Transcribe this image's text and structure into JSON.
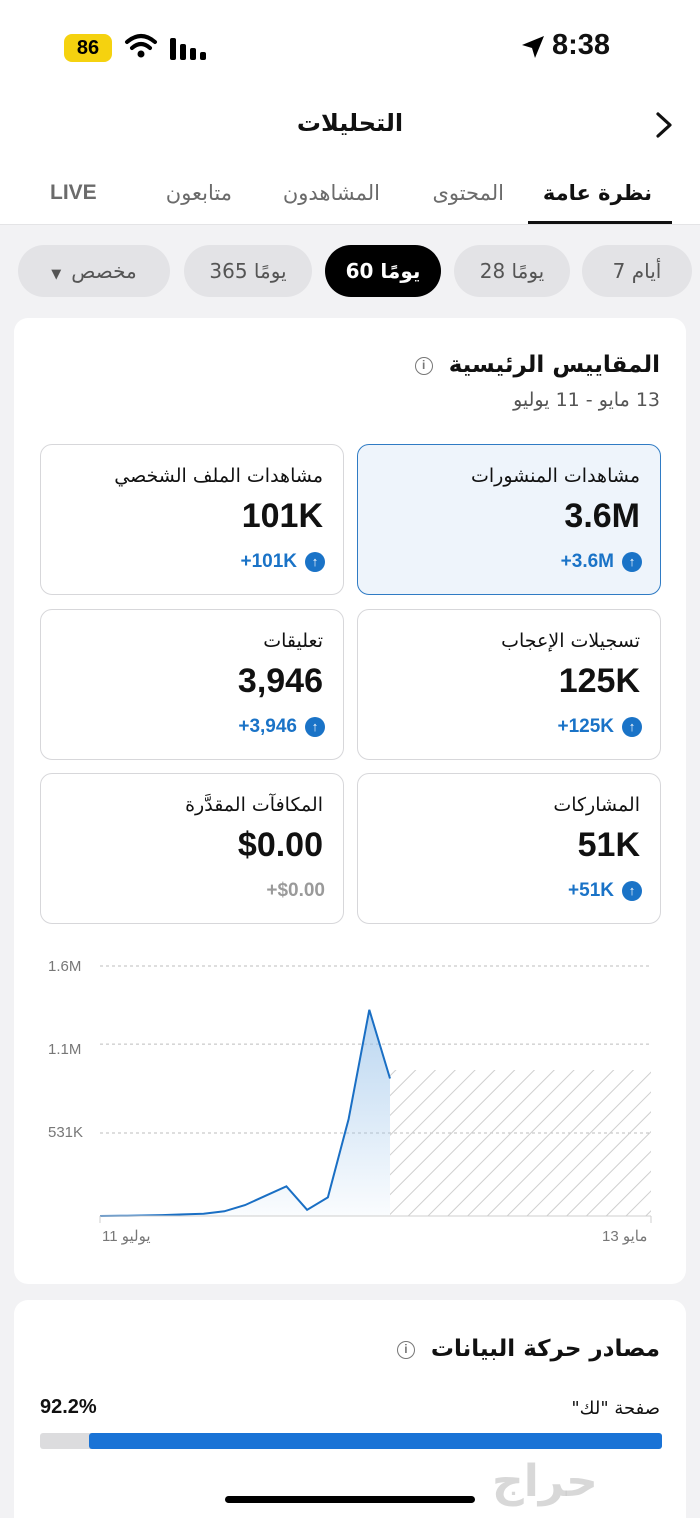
{
  "status_bar": {
    "battery": "86",
    "time": "8:38"
  },
  "header": {
    "title": "التحليلات",
    "tabs": [
      "نظرة عامة",
      "المحتوى",
      "المشاهدون",
      "متابعون",
      "LIVE"
    ]
  },
  "filters": {
    "chips": [
      "7 أيام",
      "28 يومًا",
      "60 يومًا",
      "365 يومًا",
      "مخصص"
    ],
    "selected": "60 يومًا"
  },
  "key_metrics": {
    "title": "المقاييس الرئيسية",
    "date_range": "13 مايو - 11 يوليو",
    "metrics": [
      {
        "label": "مشاهدات المنشورات",
        "value": "3.6M",
        "delta": "+3.6M"
      },
      {
        "label": "مشاهدات الملف الشخصي",
        "value": "101K",
        "delta": "+101K"
      },
      {
        "label": "تسجيلات الإعجاب",
        "value": "125K",
        "delta": "+125K"
      },
      {
        "label": "تعليقات",
        "value": "3,946",
        "delta": "+3,946"
      },
      {
        "label": "المشاركات",
        "value": "51K",
        "delta": "+51K"
      },
      {
        "label": "المكافآت المقدَّرة",
        "value": "$0.00",
        "delta": "+$0.00"
      }
    ]
  },
  "chart_data": {
    "type": "line",
    "series": [
      {
        "values": [
          0,
          1000,
          3000,
          6000,
          10000,
          15000,
          30000,
          70000,
          130000,
          190000,
          40000,
          120000,
          620000,
          1320000,
          880000
        ]
      }
    ],
    "y_ticks": [
      "1.6M",
      "1.1M",
      "531K"
    ],
    "x_ticks": [
      "مايو 13",
      "يوليو 11"
    ],
    "ylim": [
      0,
      1600000
    ],
    "grid": true,
    "projected_region": "hatched"
  },
  "traffic_sources": {
    "title": "مصادر حركة البيانات",
    "items": [
      {
        "label": "صفحة \"لك\"",
        "percent": "92.2%",
        "fraction": 0.922
      }
    ]
  },
  "watermark": "حراج"
}
